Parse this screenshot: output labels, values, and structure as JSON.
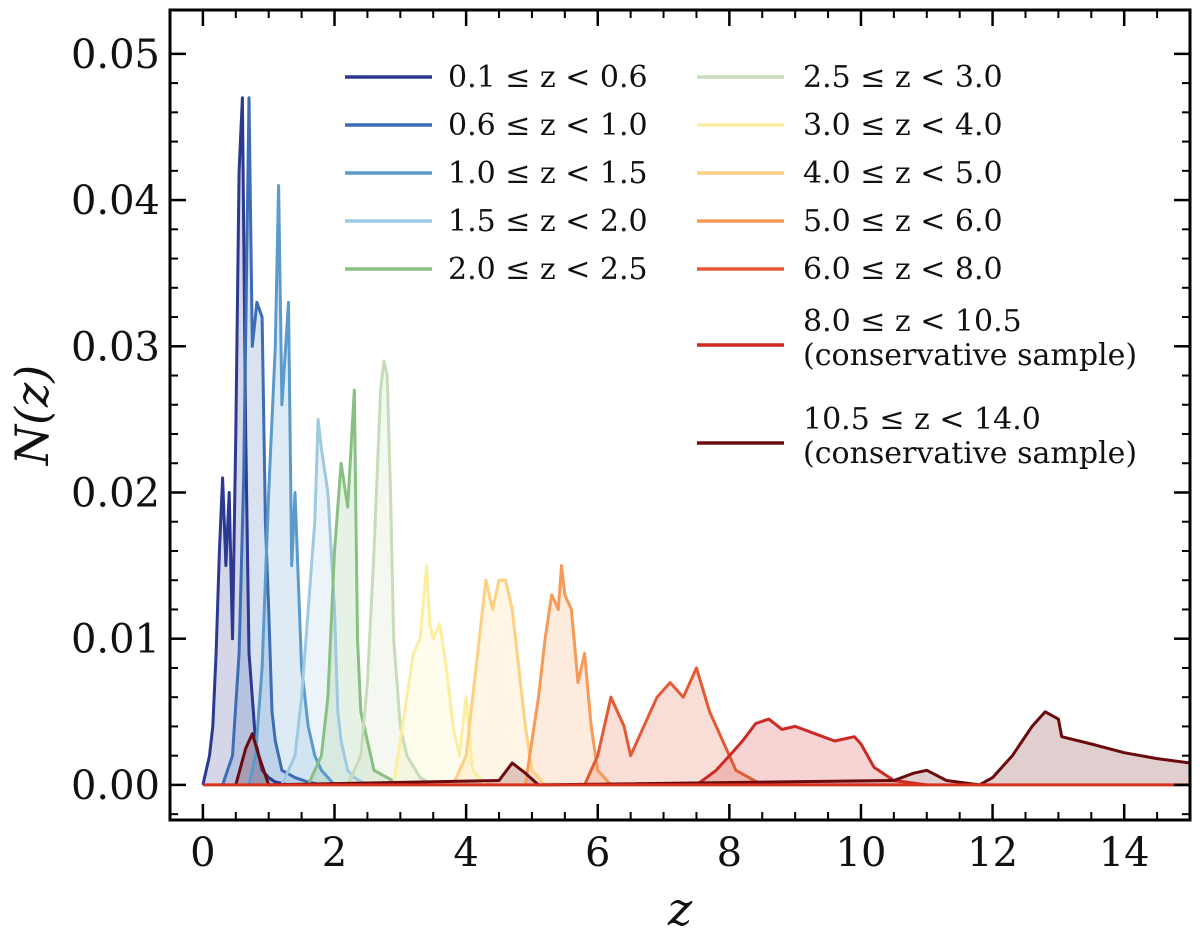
{
  "chart_data": {
    "type": "area",
    "xlabel": "z",
    "ylabel": "N(z)",
    "xlim": [
      -0.5,
      15
    ],
    "ylim": [
      -0.0024,
      0.053
    ],
    "xticks": [
      0,
      2,
      4,
      6,
      8,
      10,
      12,
      14
    ],
    "xtick_labels": [
      "0",
      "2",
      "4",
      "6",
      "8",
      "10",
      "12",
      "14"
    ],
    "yticks": [
      0.0,
      0.01,
      0.02,
      0.03,
      0.04,
      0.05
    ],
    "ytick_labels": [
      "0.00",
      "0.01",
      "0.02",
      "0.03",
      "0.04",
      "0.05"
    ],
    "legend_position": "top-right",
    "series": [
      {
        "name": "0.1 ≤ z < 0.6",
        "note": "",
        "color": "#2b3990",
        "x": [
          0.0,
          0.1,
          0.15,
          0.2,
          0.25,
          0.3,
          0.35,
          0.4,
          0.45,
          0.5,
          0.55,
          0.6,
          0.65,
          0.7,
          0.75,
          0.8,
          0.85,
          0.9,
          1.0,
          1.1,
          1.3
        ],
        "y": [
          0.0,
          0.002,
          0.004,
          0.009,
          0.016,
          0.021,
          0.015,
          0.02,
          0.01,
          0.024,
          0.042,
          0.047,
          0.024,
          0.009,
          0.006,
          0.003,
          0.002,
          0.001,
          0.0005,
          0.0002,
          0.0
        ]
      },
      {
        "name": "0.6 ≤ z < 1.0",
        "note": "",
        "color": "#3d6db5",
        "x": [
          0.3,
          0.45,
          0.55,
          0.62,
          0.7,
          0.75,
          0.82,
          0.9,
          0.95,
          1.0,
          1.05,
          1.1,
          1.2,
          1.4,
          1.6,
          1.8
        ],
        "y": [
          0.0,
          0.002,
          0.009,
          0.021,
          0.047,
          0.03,
          0.033,
          0.032,
          0.018,
          0.012,
          0.005,
          0.003,
          0.001,
          0.0005,
          0.0002,
          0.0
        ]
      },
      {
        "name": "1.0 ≤ z < 1.5",
        "note": "",
        "color": "#5b9bcc",
        "x": [
          0.7,
          0.8,
          0.9,
          1.0,
          1.1,
          1.15,
          1.2,
          1.3,
          1.35,
          1.4,
          1.5,
          1.6,
          1.7,
          1.8,
          2.0
        ],
        "y": [
          0.0,
          0.002,
          0.008,
          0.02,
          0.03,
          0.041,
          0.026,
          0.033,
          0.015,
          0.02,
          0.008,
          0.004,
          0.002,
          0.001,
          0.0
        ]
      },
      {
        "name": "1.5 ≤ z < 2.0",
        "note": "",
        "color": "#9ecae1",
        "x": [
          1.2,
          1.4,
          1.5,
          1.6,
          1.7,
          1.75,
          1.8,
          1.9,
          2.0,
          2.05,
          2.1,
          2.2,
          2.3,
          2.5
        ],
        "y": [
          0.0,
          0.002,
          0.006,
          0.012,
          0.018,
          0.025,
          0.023,
          0.02,
          0.012,
          0.005,
          0.003,
          0.001,
          0.0005,
          0.0
        ]
      },
      {
        "name": "2.0 ≤ z < 2.5",
        "note": "",
        "color": "#88c082",
        "x": [
          1.6,
          1.8,
          1.9,
          2.0,
          2.1,
          2.2,
          2.25,
          2.3,
          2.35,
          2.4,
          2.5,
          2.6,
          2.8,
          3.0
        ],
        "y": [
          0.0,
          0.002,
          0.006,
          0.016,
          0.022,
          0.019,
          0.023,
          0.027,
          0.01,
          0.005,
          0.003,
          0.001,
          0.0005,
          0.0
        ]
      },
      {
        "name": "2.5 ≤ z < 3.0",
        "note": "",
        "color": "#c7dcb8",
        "x": [
          2.2,
          2.4,
          2.5,
          2.6,
          2.7,
          2.75,
          2.8,
          2.85,
          2.9,
          3.0,
          3.1,
          3.3,
          3.5
        ],
        "y": [
          0.0,
          0.002,
          0.007,
          0.016,
          0.027,
          0.029,
          0.028,
          0.02,
          0.01,
          0.004,
          0.002,
          0.0005,
          0.0
        ]
      },
      {
        "name": "3.0 ≤ z < 4.0",
        "note": "",
        "color": "#fbeea0",
        "x": [
          2.9,
          3.0,
          3.1,
          3.2,
          3.3,
          3.4,
          3.45,
          3.5,
          3.6,
          3.7,
          3.8,
          3.9,
          4.0,
          4.1,
          4.3
        ],
        "y": [
          0.0,
          0.003,
          0.006,
          0.009,
          0.01,
          0.015,
          0.011,
          0.01,
          0.011,
          0.008,
          0.004,
          0.002,
          0.006,
          0.001,
          0.0
        ]
      },
      {
        "name": "4.0 ≤ z < 5.0",
        "note": "",
        "color": "#fdd082",
        "x": [
          3.8,
          4.0,
          4.1,
          4.2,
          4.3,
          4.4,
          4.5,
          4.6,
          4.7,
          4.8,
          4.9,
          5.0,
          5.2
        ],
        "y": [
          0.0,
          0.002,
          0.006,
          0.01,
          0.014,
          0.012,
          0.014,
          0.014,
          0.012,
          0.008,
          0.004,
          0.001,
          0.0
        ]
      },
      {
        "name": "5.0 ≤ z < 6.0",
        "note": "",
        "color": "#f79a58",
        "x": [
          4.9,
          5.0,
          5.1,
          5.2,
          5.3,
          5.4,
          5.45,
          5.5,
          5.6,
          5.7,
          5.8,
          5.9,
          6.0,
          6.2
        ],
        "y": [
          0.0,
          0.003,
          0.006,
          0.01,
          0.013,
          0.012,
          0.015,
          0.013,
          0.012,
          0.007,
          0.009,
          0.004,
          0.001,
          0.0
        ]
      },
      {
        "name": "6.0 ≤ z < 8.0",
        "note": "",
        "color": "#e35a35",
        "x": [
          5.8,
          6.0,
          6.2,
          6.4,
          6.5,
          6.7,
          6.9,
          7.1,
          7.3,
          7.5,
          7.7,
          7.9,
          8.1,
          8.5
        ],
        "y": [
          0.0,
          0.002,
          0.006,
          0.004,
          0.002,
          0.004,
          0.006,
          0.007,
          0.006,
          0.008,
          0.005,
          0.003,
          0.001,
          0.0
        ]
      },
      {
        "name": "8.0 ≤ z < 10.5",
        "note": "(conservative sample)",
        "color": "#cc2a23",
        "x": [
          7.5,
          7.8,
          8.0,
          8.2,
          8.4,
          8.6,
          8.8,
          9.0,
          9.3,
          9.6,
          9.9,
          10.0,
          10.2,
          10.5,
          11.0
        ],
        "y": [
          0.0,
          0.001,
          0.002,
          0.003,
          0.0042,
          0.0045,
          0.0038,
          0.004,
          0.0035,
          0.003,
          0.0033,
          0.0028,
          0.0012,
          0.0003,
          0.0
        ]
      },
      {
        "name": "10.5 ≤ z < 14.0",
        "note": "(conservative sample)",
        "color": "#6b0b0e",
        "x": [
          0.5,
          0.65,
          0.75,
          0.85,
          1.0,
          4.5,
          4.7,
          4.9,
          5.1,
          10.5,
          10.8,
          11.0,
          11.3,
          11.8,
          12.0,
          12.3,
          12.6,
          12.8,
          13.0,
          13.05,
          13.5,
          14.0,
          14.5,
          15.0
        ],
        "y": [
          0.0,
          0.0025,
          0.0035,
          0.002,
          0.0,
          0.0003,
          0.0015,
          0.0008,
          0.0,
          0.0003,
          0.0008,
          0.001,
          0.0003,
          0.0,
          0.0005,
          0.002,
          0.004,
          0.005,
          0.0045,
          0.0033,
          0.0028,
          0.0022,
          0.0018,
          0.0015
        ]
      }
    ]
  }
}
